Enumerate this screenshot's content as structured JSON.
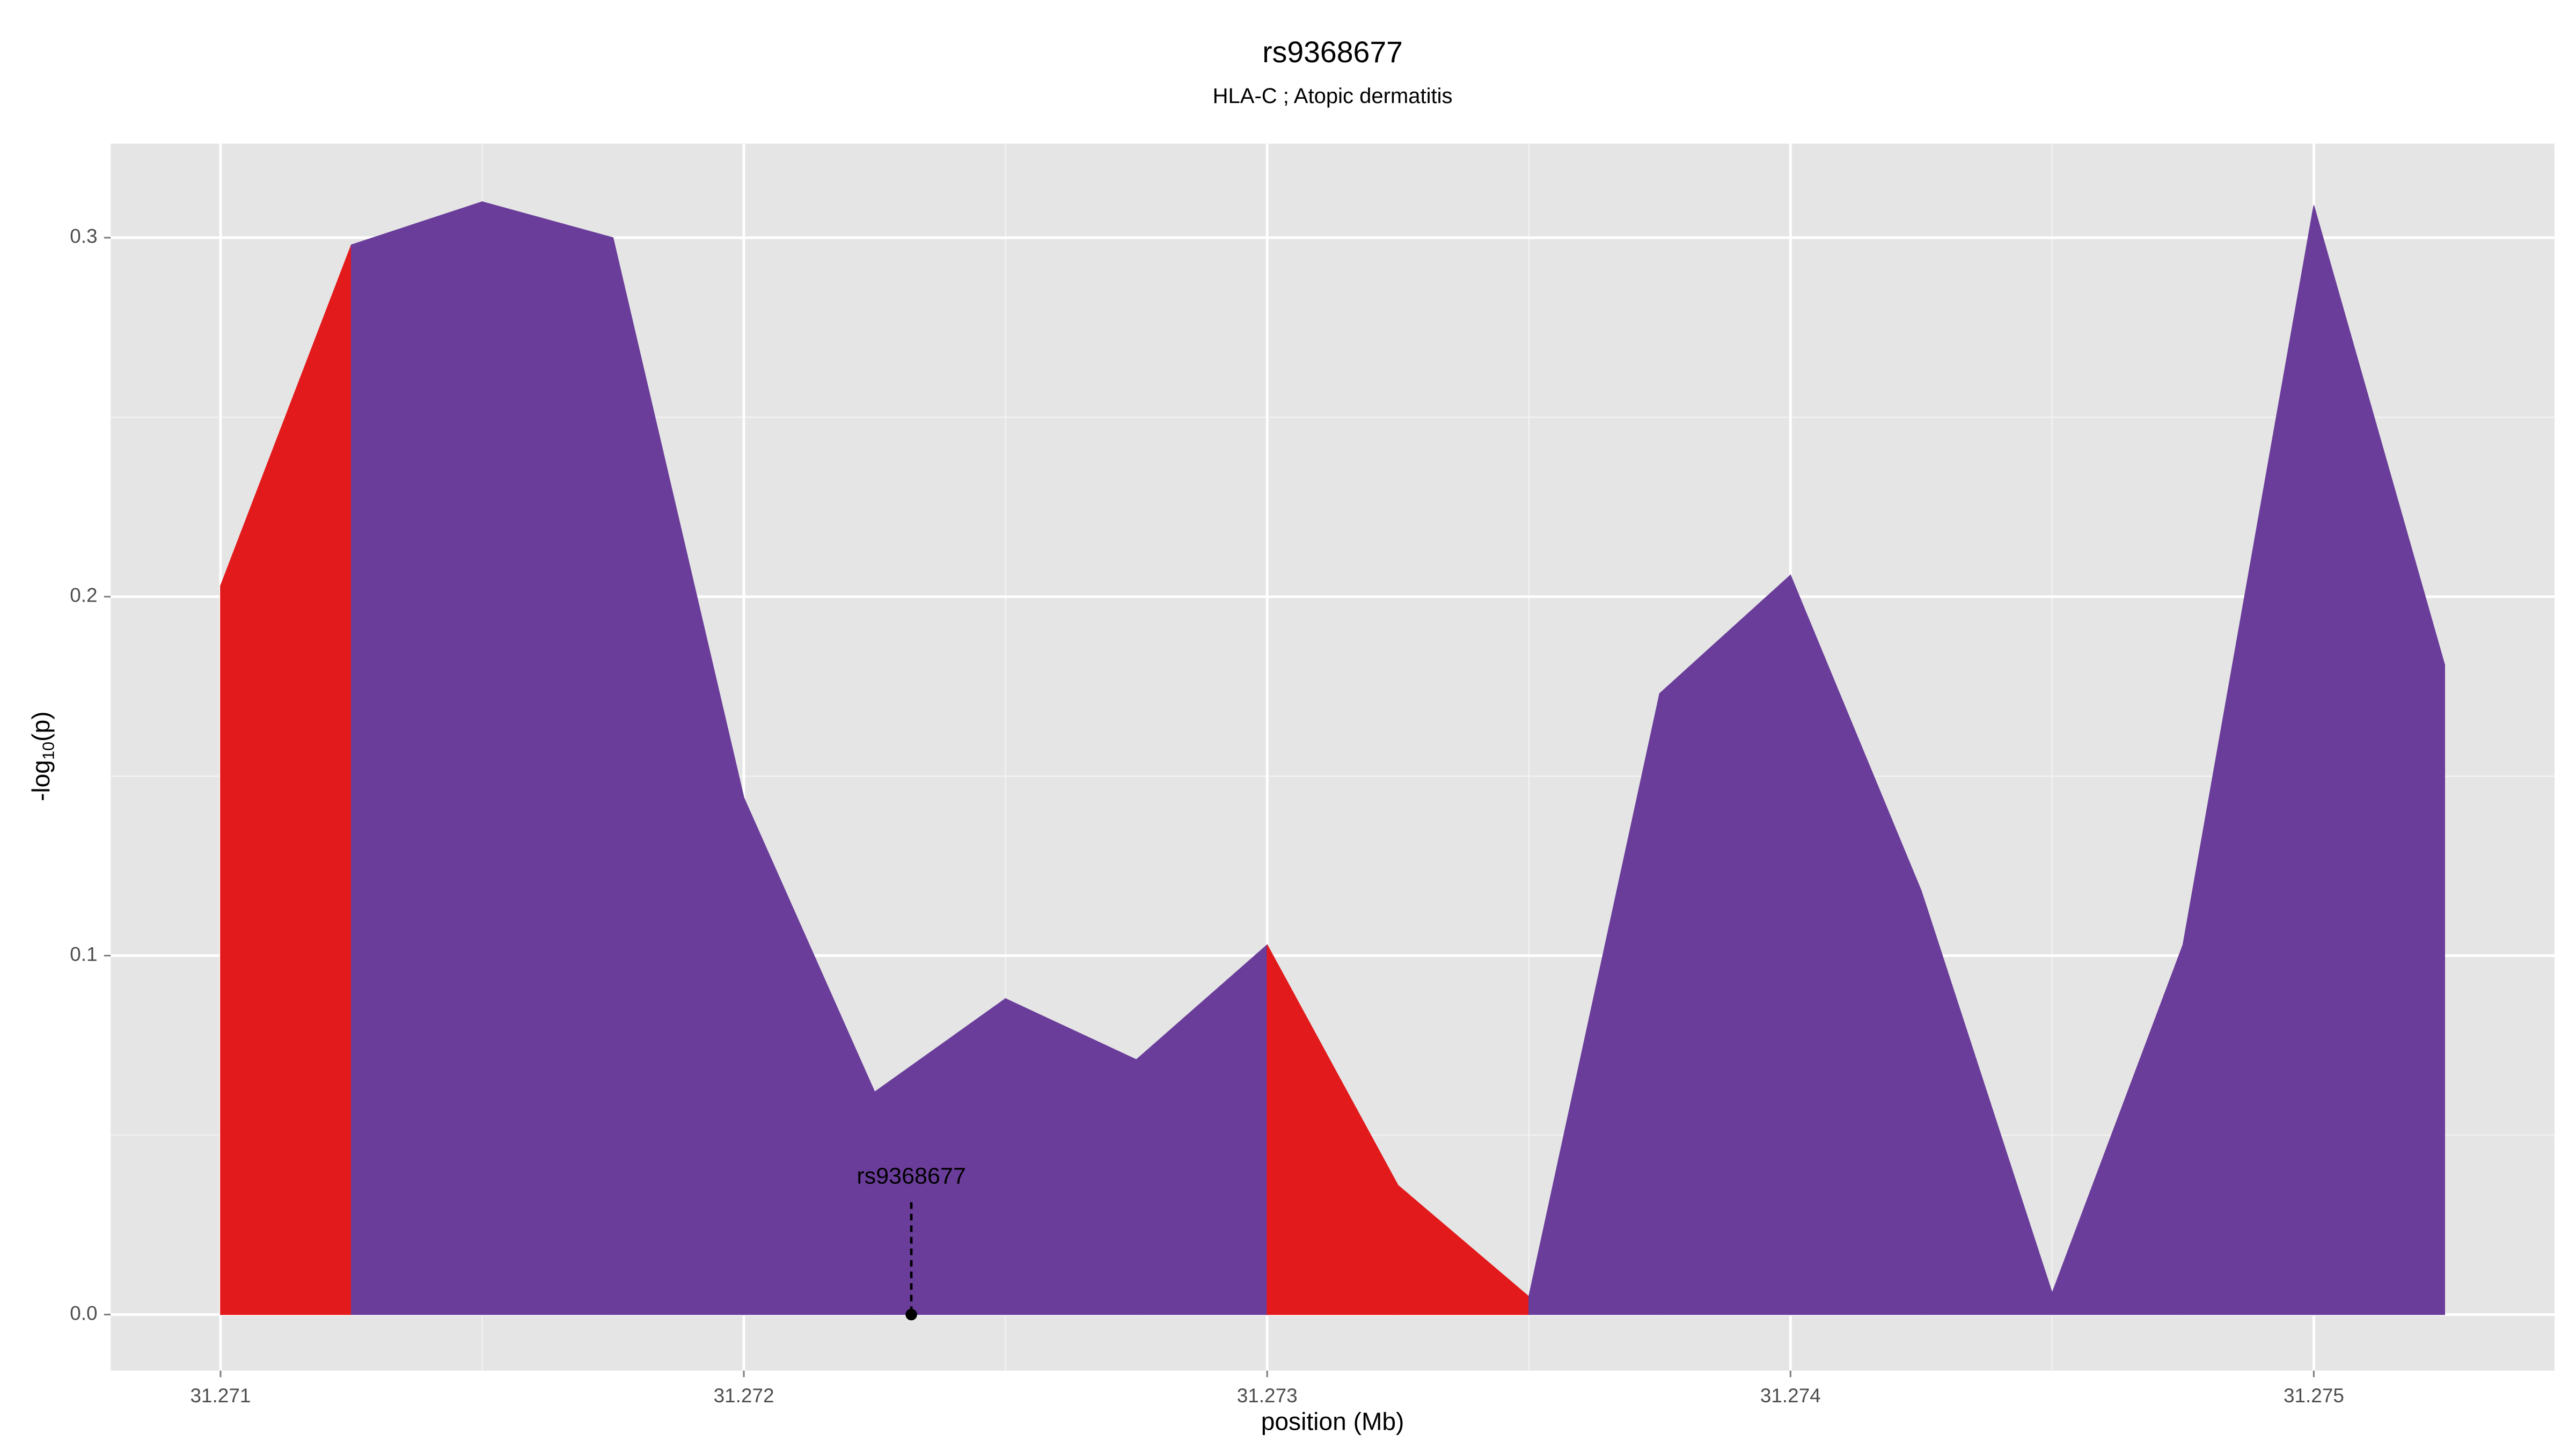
{
  "chart_data": {
    "type": "area",
    "title": "rs9368677",
    "subtitle": "HLA-C ; Atopic dermatitis",
    "xlabel": "position (Mb)",
    "ylabel": {
      "base": "-log",
      "sub": "10",
      "tail": "(p)"
    },
    "x": [
      31.271,
      31.27125,
      31.2715,
      31.27175,
      31.272,
      31.27225,
      31.2725,
      31.27275,
      31.273,
      31.27325,
      31.2735,
      31.27375,
      31.274,
      31.27425,
      31.2745,
      31.27475,
      31.275,
      31.27525
    ],
    "values": [
      0.203,
      0.298,
      0.31,
      0.3,
      0.144,
      0.062,
      0.088,
      0.071,
      0.103,
      0.036,
      0.005,
      0.173,
      0.206,
      0.118,
      0.006,
      0.103,
      0.309,
      0.181
    ],
    "segment_colors": [
      "#e31a1c",
      "#6a3d9a",
      "#6a3d9a",
      "#6a3d9a",
      "#6a3d9a",
      "#6a3d9a",
      "#6a3d9a",
      "#6a3d9a",
      "#e31a1c",
      "#e31a1c",
      "#6a3d9a",
      "#6a3d9a",
      "#6a3d9a",
      "#6a3d9a",
      "#6a3d9a",
      "#6a3d9a",
      "#6a3d9a"
    ],
    "xlim": [
      31.27079,
      31.27546
    ],
    "ylim": [
      -0.0156,
      0.3262
    ],
    "xticks": [
      31.271,
      31.272,
      31.273,
      31.274,
      31.275
    ],
    "yticks": [
      {
        "value": 0,
        "label": "0.0"
      },
      {
        "value": 0.1,
        "label": "0.1"
      },
      {
        "value": 0.2,
        "label": "0.2"
      },
      {
        "value": 0.3,
        "label": "0.3"
      }
    ],
    "xminor": [
      31.2715,
      31.2725,
      31.2735,
      31.2745
    ],
    "yminor": [
      0.05,
      0.15,
      0.25
    ],
    "grid": true,
    "annotation": {
      "label": "rs9368677",
      "x": 31.27232,
      "y": 0
    }
  }
}
